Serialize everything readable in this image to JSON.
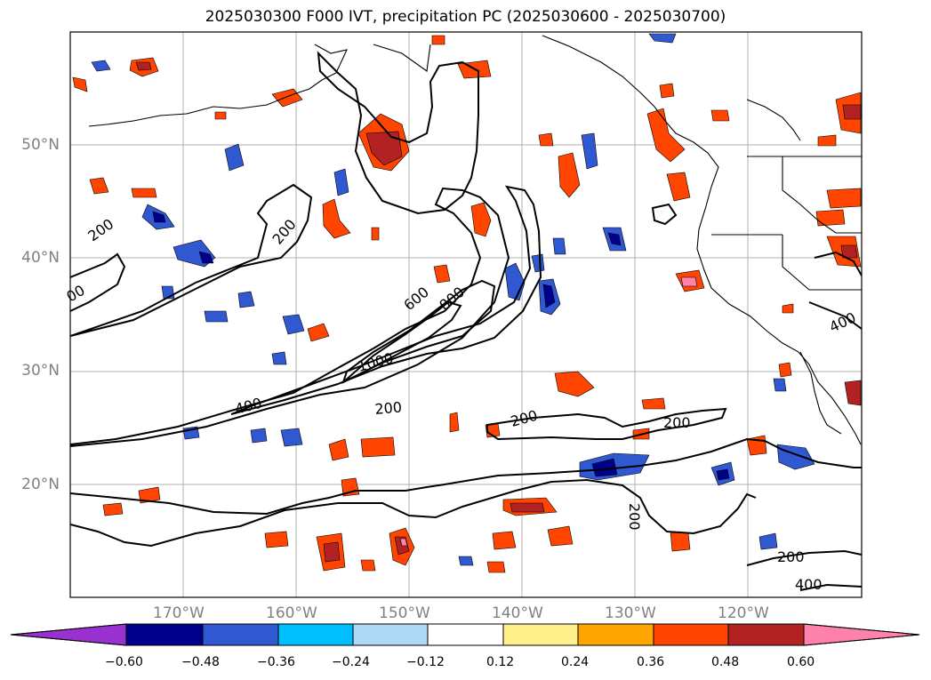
{
  "title": "2025030300 F000 IVT, precipitation PC (2025030600 - 2025030700)",
  "map": {
    "lat_labels": [
      "50°N",
      "40°N",
      "30°N",
      "20°N"
    ],
    "lon_labels": [
      "170°W",
      "160°W",
      "150°W",
      "140°W",
      "130°W",
      "120°W"
    ],
    "contour_labels": [
      "200",
      "200",
      "00",
      "600",
      "800",
      "1000",
      "400",
      "200",
      "200",
      "200",
      "200",
      "200",
      "400",
      "400"
    ]
  },
  "colorbar": {
    "ticks": [
      "−0.60",
      "−0.48",
      "−0.36",
      "−0.24",
      "−0.12",
      "0.12",
      "0.24",
      "0.36",
      "0.48",
      "0.60"
    ],
    "colors": [
      "#9b30d0",
      "#00008b",
      "#3058d0",
      "#00bfff",
      "#add8f5",
      "#ffffff",
      "#fff08c",
      "#ffa500",
      "#ff4500",
      "#b22222",
      "#ff82aa"
    ]
  }
}
